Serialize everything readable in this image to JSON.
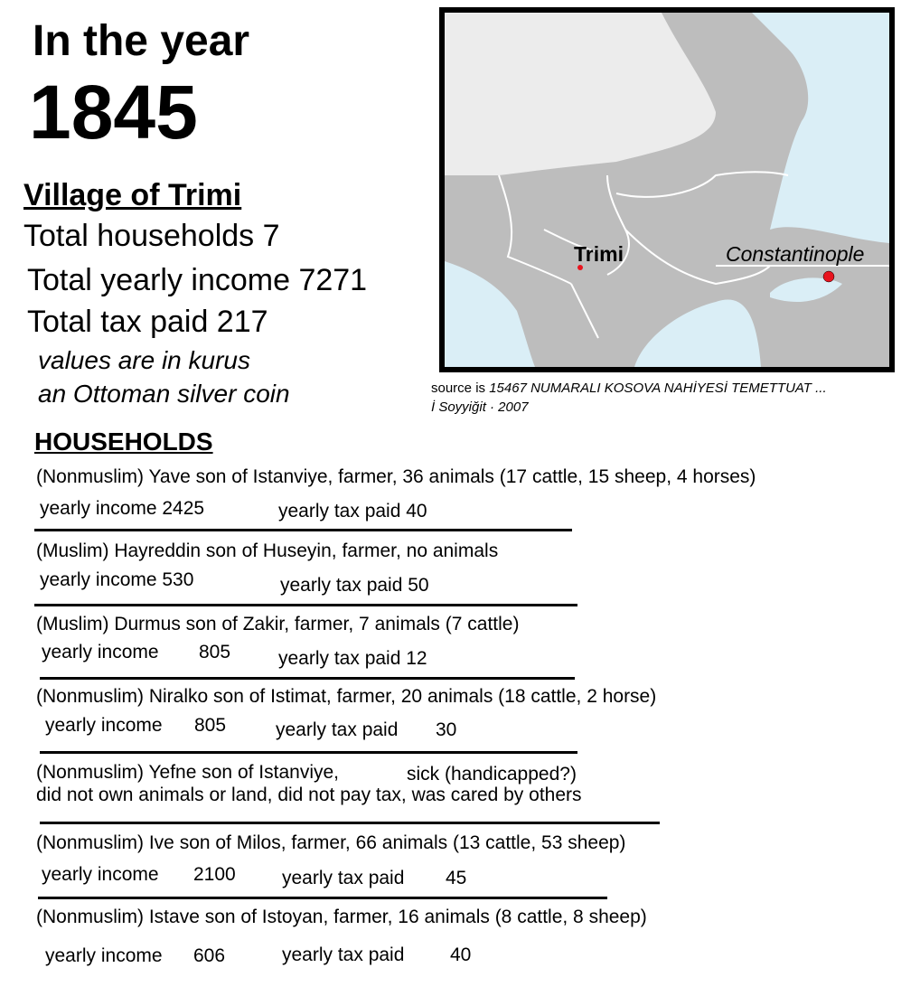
{
  "header": {
    "line1": "In the year",
    "year": "1845"
  },
  "summary": {
    "village": "Village of Trimi",
    "households": "Total households 7",
    "income": "Total yearly income 7271",
    "tax": "Total tax paid 217",
    "note1": "values are in kurus",
    "note2": "an Ottoman silver coin"
  },
  "map": {
    "labels": {
      "trimi": "Trimi",
      "constantinople": "Constantinople"
    },
    "colors": {
      "land": "#bdbdbd",
      "other_land": "#ececec",
      "sea": "#daeef6",
      "marker": "#e8141e"
    }
  },
  "source": {
    "prefix": "source is ",
    "title": "15467 NUMARALI KOSOVA NAHİYESİ TEMETTUAT ...",
    "author": "İ Soyyiğit · 2007"
  },
  "households": {
    "heading": "HOUSEHOLDS",
    "items": [
      {
        "desc": "(Nonmuslim) Yave son of Istanviye, farmer, 36 animals (17 cattle, 15 sheep, 4 horses)",
        "income_label": "yearly income 2425",
        "tax_label": "yearly tax paid 40"
      },
      {
        "desc": "(Muslim) Hayreddin son of Huseyin, farmer, no animals",
        "income_label": "yearly income 530",
        "tax_label": "yearly tax paid 50"
      },
      {
        "desc": "(Muslim) Durmus son of Zakir, farmer, 7 animals (7 cattle)",
        "income_label": "yearly income",
        "income": "805",
        "tax_label": "yearly tax paid 12"
      },
      {
        "desc": "(Nonmuslim) Niralko son of Istimat, farmer, 20 animals  (18 cattle, 2 horse)",
        "income_label": "yearly income",
        "income": "805",
        "tax_label": "yearly tax paid",
        "tax": "30"
      },
      {
        "desc": "(Nonmuslim) Yefne son of Istanviye,",
        "desc_extra": "sick (handicapped?)",
        "desc2": "did not own animals or land, did not pay tax, was cared by others"
      },
      {
        "desc": "(Nonmuslim) Ive son of Milos, farmer, 66 animals (13 cattle, 53 sheep)",
        "income_label": "yearly income",
        "income": "2100",
        "tax_label": "yearly tax paid",
        "tax": "45"
      },
      {
        "desc": "(Nonmuslim) Istave son of Istoyan, farmer, 16 animals (8 cattle, 8 sheep)",
        "income_label": "yearly income",
        "income": "606",
        "tax_label": "yearly tax paid",
        "tax": "40"
      }
    ]
  }
}
